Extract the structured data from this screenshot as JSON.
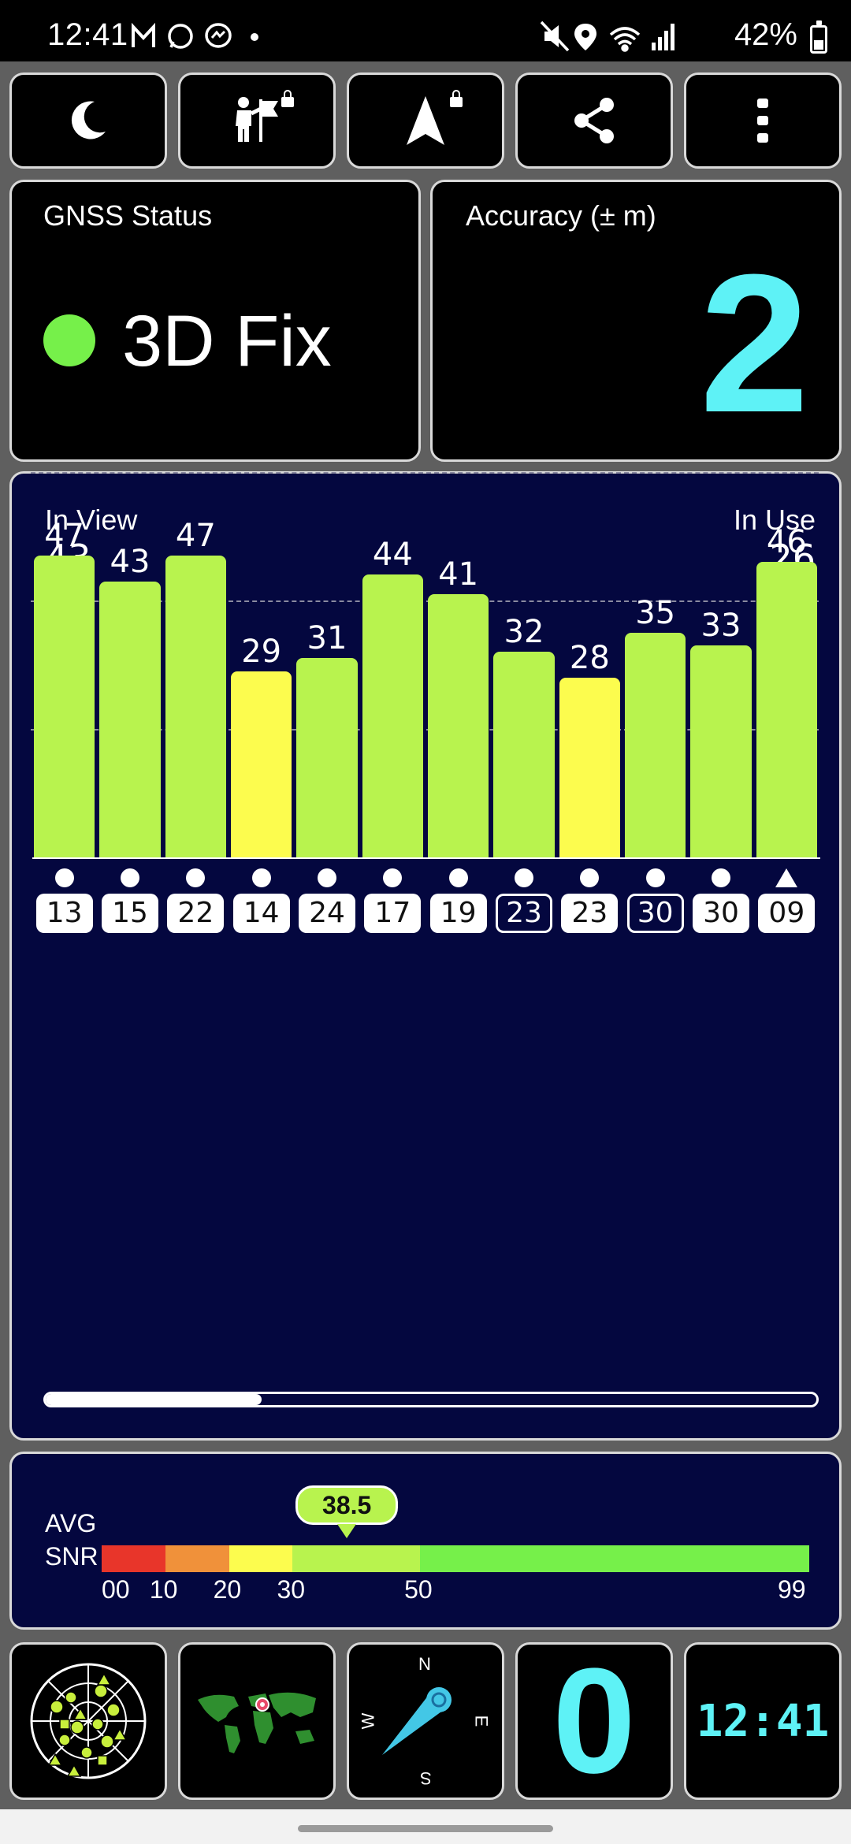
{
  "status_bar": {
    "time": "12:41",
    "battery": "42%",
    "left_icons": [
      "gmail-icon",
      "whatsapp-icon",
      "messenger-icon",
      "dot-icon"
    ],
    "right_icons": [
      "mute-icon",
      "location-icon",
      "wifi-icon",
      "signal-icon",
      "battery-icon"
    ]
  },
  "toolbar": {
    "buttons": [
      {
        "name": "night-mode-button",
        "icon": "moon-icon"
      },
      {
        "name": "navigate-to-point-button",
        "icon": "person-flag-icon",
        "locked": true
      },
      {
        "name": "navigation-button",
        "icon": "navigation-arrow-icon",
        "locked": true
      },
      {
        "name": "share-button",
        "icon": "share-icon"
      },
      {
        "name": "more-menu-button",
        "icon": "more-vertical-icon"
      }
    ]
  },
  "gnss": {
    "label": "GNSS Status",
    "fix": "3D Fix",
    "fix_color": "#76f04a"
  },
  "accuracy": {
    "label": "Accuracy (± m)",
    "value": "2",
    "color": "#5ef2f6"
  },
  "satellites": {
    "in_view_label": "In View",
    "in_view": "43",
    "in_use_label": "In Use",
    "in_use": "26"
  },
  "chart_data": {
    "type": "bar",
    "categories": [
      "13",
      "15",
      "22",
      "14",
      "24",
      "17",
      "19",
      "23",
      "23",
      "30",
      "30",
      "09"
    ],
    "values": [
      47,
      43,
      47,
      29,
      31,
      44,
      41,
      32,
      28,
      35,
      33,
      46
    ],
    "ylim": [
      0,
      60
    ],
    "grid": true,
    "bar_colors": [
      "#b8f34e",
      "#b8f34e",
      "#b8f34e",
      "#fcfc4e",
      "#b8f34e",
      "#b8f34e",
      "#b8f34e",
      "#b8f34e",
      "#fcfc4e",
      "#b8f34e",
      "#b8f34e",
      "#b8f34e"
    ],
    "markers": [
      "dot",
      "dot",
      "dot",
      "dot",
      "dot",
      "dot",
      "dot",
      "dot",
      "dot",
      "dot",
      "dot",
      "triangle"
    ],
    "outlined": [
      false,
      false,
      false,
      false,
      false,
      false,
      false,
      true,
      false,
      true,
      false,
      false
    ],
    "scroll_fraction": 0.28
  },
  "snr": {
    "label_line1": "AVG",
    "label_line2": "SNR",
    "avg": "38.5",
    "avg_value": 38.5,
    "ticks": [
      "00",
      "10",
      "20",
      "30",
      "50",
      "99"
    ],
    "segments": [
      {
        "from": 0,
        "to": 10,
        "color": "#e8352a"
      },
      {
        "from": 10,
        "to": 20,
        "color": "#f0913a"
      },
      {
        "from": 20,
        "to": 30,
        "color": "#fcfc4e"
      },
      {
        "from": 30,
        "to": 50,
        "color": "#b8f34e"
      },
      {
        "from": 50,
        "to": 99,
        "color": "#76f04a"
      }
    ]
  },
  "bottom_bar": {
    "tiles": [
      {
        "name": "sky-view-tile",
        "icon": "sky-plot-icon"
      },
      {
        "name": "world-map-tile",
        "icon": "world-map-icon"
      },
      {
        "name": "compass-tile",
        "icon": "compass-icon",
        "n": "N",
        "e": "E",
        "s": "S",
        "w": "W"
      },
      {
        "name": "speed-tile",
        "value": "0"
      },
      {
        "name": "clock-tile",
        "value": "12:41"
      }
    ]
  }
}
